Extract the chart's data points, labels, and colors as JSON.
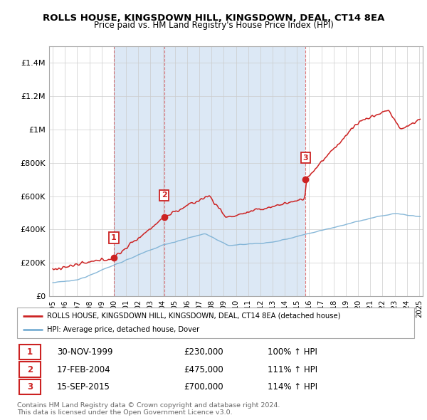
{
  "title": "ROLLS HOUSE, KINGSDOWN HILL, KINGSDOWN, DEAL, CT14 8EA",
  "subtitle": "Price paid vs. HM Land Registry's House Price Index (HPI)",
  "sale_labels": [
    "1",
    "2",
    "3"
  ],
  "sale_dates_num": [
    2000.0,
    2004.12,
    2015.71
  ],
  "sale_prices": [
    230000,
    475000,
    700000
  ],
  "sale_dates_text": [
    "30-NOV-1999",
    "17-FEB-2004",
    "15-SEP-2015"
  ],
  "sale_prices_text": [
    "£230,000",
    "£475,000",
    "£700,000"
  ],
  "sale_hpi_text": [
    "100% ↑ HPI",
    "111% ↑ HPI",
    "114% ↑ HPI"
  ],
  "vline_dates": [
    2000.0,
    2004.12,
    2015.71
  ],
  "legend_line1": "ROLLS HOUSE, KINGSDOWN HILL, KINGSDOWN, DEAL, CT14 8EA (detached house)",
  "legend_line2": "HPI: Average price, detached house, Dover",
  "footer": "Contains HM Land Registry data © Crown copyright and database right 2024.\nThis data is licensed under the Open Government Licence v3.0.",
  "red_color": "#cc2222",
  "blue_color": "#7ab0d4",
  "shade_color": "#dce8f5",
  "ylim": [
    0,
    1500000
  ],
  "xlim": [
    1994.7,
    2025.3
  ],
  "yticks": [
    0,
    200000,
    400000,
    600000,
    800000,
    1000000,
    1200000,
    1400000
  ],
  "ytick_labels": [
    "£0",
    "£200K",
    "£400K",
    "£600K",
    "£800K",
    "£1M",
    "£1.2M",
    "£1.4M"
  ]
}
